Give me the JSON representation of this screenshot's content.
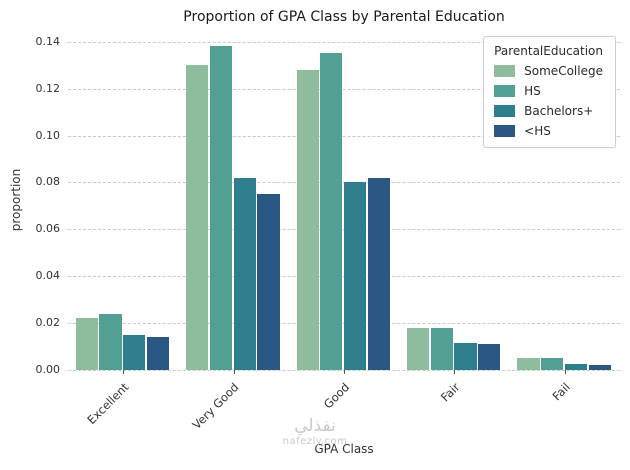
{
  "chart_data": {
    "type": "bar",
    "title": "Proportion of GPA Class by Parental Education",
    "xlabel": "GPA Class",
    "ylabel": "proportion",
    "legend_title": "ParentalEducation",
    "legend_position": "upper right",
    "grid": "horizontal dashed",
    "categories": [
      "Excellent",
      "Very Good",
      "Good",
      "Fair",
      "Fail"
    ],
    "series": [
      {
        "name": "SomeCollege",
        "color": "#8fbc9d",
        "values": [
          0.022,
          0.13,
          0.128,
          0.018,
          0.005
        ]
      },
      {
        "name": "HS",
        "color": "#52a093",
        "values": [
          0.024,
          0.138,
          0.135,
          0.018,
          0.005
        ]
      },
      {
        "name": "Bachelors+",
        "color": "#2f7e8e",
        "values": [
          0.015,
          0.082,
          0.08,
          0.0115,
          0.0025
        ]
      },
      {
        "name": "<HS",
        "color": "#2a5783",
        "values": [
          0.014,
          0.075,
          0.082,
          0.011,
          0.002
        ]
      }
    ],
    "yticks": [
      0,
      0.02,
      0.04,
      0.06,
      0.08,
      0.1,
      0.12,
      0.14
    ],
    "ylim": [
      0,
      0.145
    ]
  },
  "watermark": {
    "arabic": "نفذلي",
    "site": "nafezly.com"
  }
}
